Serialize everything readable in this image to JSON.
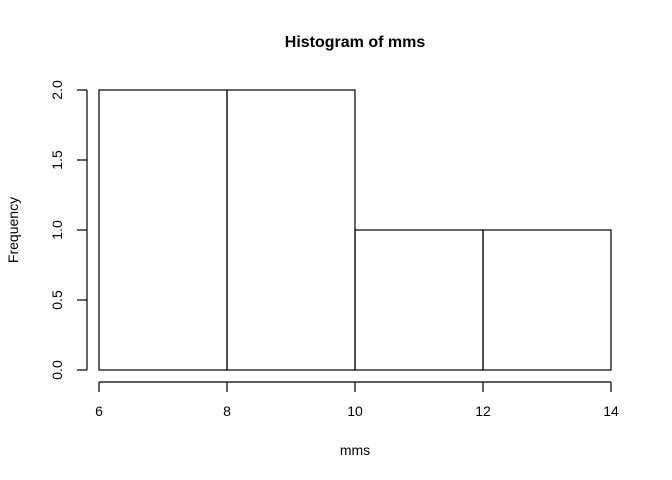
{
  "chart_data": {
    "type": "bar",
    "title": "Histogram of mms",
    "xlabel": "mms",
    "ylabel": "Frequency",
    "bins": [
      {
        "start": 6,
        "end": 8,
        "count": 2
      },
      {
        "start": 8,
        "end": 10,
        "count": 2
      },
      {
        "start": 10,
        "end": 12,
        "count": 1
      },
      {
        "start": 12,
        "end": 14,
        "count": 1
      }
    ],
    "xlim": [
      6,
      14
    ],
    "ylim": [
      0,
      2
    ],
    "x_ticks": [
      6,
      8,
      10,
      12,
      14
    ],
    "y_ticks": [
      0.0,
      0.5,
      1.0,
      1.5,
      2.0
    ],
    "x_tick_labels": [
      "6",
      "8",
      "10",
      "12",
      "14"
    ],
    "y_tick_labels": [
      "0.0",
      "0.5",
      "1.0",
      "1.5",
      "2.0"
    ],
    "grid": false,
    "bar_fill": "#ffffff",
    "bar_stroke": "#000000"
  }
}
